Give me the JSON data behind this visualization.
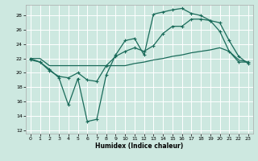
{
  "xlabel": "Humidex (Indice chaleur)",
  "bg_color": "#cde8e0",
  "grid_color": "#ffffff",
  "line_color": "#1a6b5a",
  "xlim": [
    -0.5,
    23.5
  ],
  "ylim": [
    11.5,
    29.5
  ],
  "xticks": [
    0,
    1,
    2,
    3,
    4,
    5,
    6,
    7,
    8,
    9,
    10,
    11,
    12,
    13,
    14,
    15,
    16,
    17,
    18,
    19,
    20,
    21,
    22,
    23
  ],
  "yticks": [
    12,
    14,
    16,
    18,
    20,
    22,
    24,
    26,
    28
  ],
  "line1_x": [
    0,
    1,
    2,
    3,
    4,
    5,
    6,
    7,
    8,
    9,
    10,
    11,
    12,
    13,
    14,
    15,
    16,
    17,
    18,
    19,
    20,
    21,
    22,
    23
  ],
  "line1_y": [
    22.0,
    21.5,
    20.5,
    19.3,
    15.5,
    19.2,
    13.2,
    13.5,
    19.7,
    22.5,
    24.5,
    24.8,
    22.5,
    28.2,
    28.5,
    28.8,
    29.0,
    28.3,
    28.0,
    27.3,
    25.8,
    23.0,
    21.5,
    21.5
  ],
  "line2_x": [
    0,
    1,
    2,
    3,
    4,
    5,
    6,
    7,
    8,
    9,
    10,
    11,
    12,
    13,
    14,
    15,
    16,
    17,
    18,
    19,
    20,
    21,
    22,
    23
  ],
  "line2_y": [
    21.8,
    21.5,
    20.3,
    19.5,
    19.3,
    20.0,
    19.0,
    18.8,
    21.0,
    22.3,
    23.0,
    23.5,
    23.0,
    23.8,
    25.5,
    26.5,
    26.5,
    27.5,
    27.5,
    27.3,
    27.0,
    24.5,
    22.3,
    21.3
  ],
  "line3_x": [
    0,
    1,
    2,
    3,
    4,
    5,
    6,
    7,
    8,
    9,
    10,
    11,
    12,
    13,
    14,
    15,
    16,
    17,
    18,
    19,
    20,
    21,
    22,
    23
  ],
  "line3_y": [
    22.0,
    22.0,
    21.0,
    21.0,
    21.0,
    21.0,
    21.0,
    21.0,
    21.0,
    21.0,
    21.0,
    21.3,
    21.5,
    21.8,
    22.0,
    22.3,
    22.5,
    22.8,
    23.0,
    23.2,
    23.5,
    23.0,
    21.8,
    21.5
  ]
}
